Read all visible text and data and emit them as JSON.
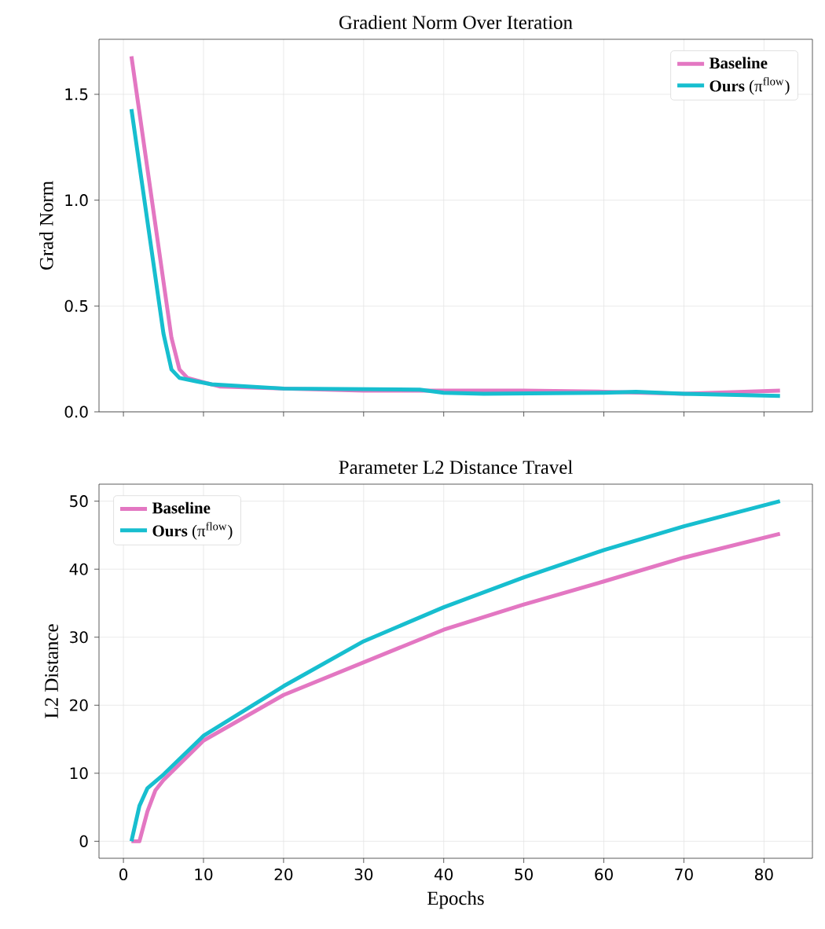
{
  "chart_data": [
    {
      "type": "line",
      "title": "Gradient Norm Over Iteration",
      "ylabel": "Grad Norm",
      "xlim": [
        -3.05,
        86.05
      ],
      "ylim": [
        0,
        1.76
      ],
      "xticks": [
        {
          "value": 0,
          "label": null
        },
        {
          "value": 10,
          "label": null
        },
        {
          "value": 20,
          "label": null
        },
        {
          "value": 30,
          "label": null
        },
        {
          "value": 40,
          "label": null
        },
        {
          "value": 50,
          "label": null
        },
        {
          "value": 60,
          "label": null
        },
        {
          "value": 70,
          "label": null
        },
        {
          "value": 80,
          "label": null
        }
      ],
      "yticks": [
        {
          "value": 0,
          "label": "0.0"
        },
        0.5,
        {
          "value": 1,
          "label": "1.0"
        },
        1.5
      ],
      "grid": true,
      "legend": "top right",
      "tick_labels": "y",
      "line_style": "solid",
      "marker": "none",
      "series": [
        {
          "name": "**Baseline**",
          "color": "#e377c2",
          "x": [
            1,
            6,
            7,
            8,
            10,
            12,
            20,
            30,
            40,
            50,
            60,
            70,
            82
          ],
          "values": [
            1.68,
            0.35,
            0.2,
            0.16,
            0.14,
            0.12,
            0.11,
            0.1,
            0.1,
            0.1,
            0.095,
            0.085,
            0.1
          ]
        },
        {
          "name": "**Ours** (π$^{flow}$)",
          "color": "#17becf",
          "x": [
            1,
            5,
            6,
            7,
            9,
            11,
            20,
            37,
            40,
            45,
            60,
            64,
            70,
            82
          ],
          "values": [
            1.43,
            0.37,
            0.2,
            0.16,
            0.145,
            0.13,
            0.11,
            0.105,
            0.09,
            0.085,
            0.09,
            0.095,
            0.085,
            0.075
          ]
        }
      ]
    },
    {
      "type": "line",
      "title": "Parameter L2 Distance Travel",
      "xlabel": "Epochs",
      "ylabel": "L2 Distance",
      "xlim": [
        -3.05,
        86.05
      ],
      "ylim": [
        -2.5,
        52.5
      ],
      "xticks": [
        0,
        10,
        20,
        30,
        40,
        50,
        60,
        70,
        80
      ],
      "yticks": [
        0,
        10,
        20,
        30,
        40,
        50
      ],
      "grid": true,
      "legend": "top left",
      "line_style": "solid",
      "marker": "none",
      "series": [
        {
          "name": "**Baseline**",
          "color": "#e377c2",
          "x": [
            1,
            2,
            3,
            4,
            5,
            10,
            20,
            30,
            40,
            50,
            60,
            70,
            82
          ],
          "values": [
            0,
            0,
            4.4,
            7.5,
            9,
            14.8,
            21.5,
            26.3,
            31.1,
            34.8,
            38.2,
            41.7,
            45.2
          ]
        },
        {
          "name": "**Ours** (π$^{flow}$)",
          "color": "#17becf",
          "x": [
            1,
            2,
            3,
            5,
            10,
            20,
            30,
            40,
            50,
            60,
            70,
            82
          ],
          "values": [
            0,
            5.2,
            7.8,
            9.8,
            15.5,
            22.8,
            29.4,
            34.4,
            38.8,
            42.8,
            46.3,
            50
          ]
        }
      ]
    }
  ]
}
